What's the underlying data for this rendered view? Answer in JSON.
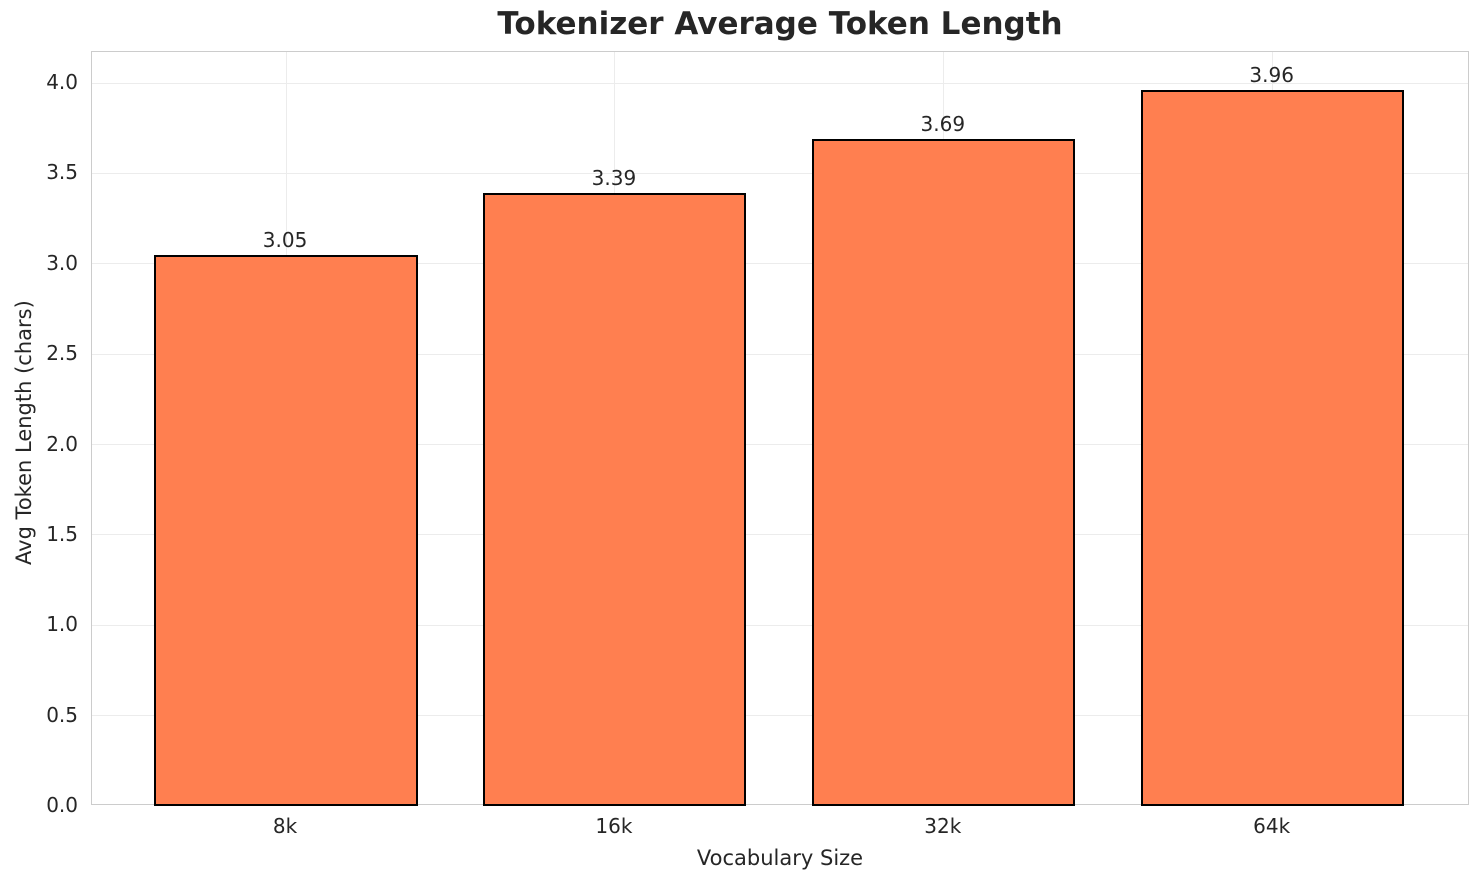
{
  "chart_data": {
    "type": "bar",
    "title": "Tokenizer Average Token Length",
    "xlabel": "Vocabulary Size",
    "ylabel": "Avg Token Length (chars)",
    "categories": [
      "8k",
      "16k",
      "32k",
      "64k"
    ],
    "values": [
      3.05,
      3.39,
      3.69,
      3.96
    ],
    "value_labels": [
      "3.05",
      "3.39",
      "3.69",
      "3.96"
    ],
    "y_ticks": [
      0.0,
      0.5,
      1.0,
      1.5,
      2.0,
      2.5,
      3.0,
      3.5,
      4.0
    ],
    "y_tick_labels": [
      "0.0",
      "0.5",
      "1.0",
      "1.5",
      "2.0",
      "2.5",
      "3.0",
      "3.5",
      "4.0"
    ],
    "ylim": [
      0,
      4.172
    ],
    "xlim": [
      -0.59,
      3.6
    ],
    "bar_width_units": 0.8,
    "grid": true,
    "legend": null,
    "colors": {
      "bar_fill": "#ff7f50",
      "bar_edge": "#000000",
      "grid": "#ececec",
      "spine": "#cccccc",
      "text": "#262626",
      "background": "#ffffff"
    }
  }
}
